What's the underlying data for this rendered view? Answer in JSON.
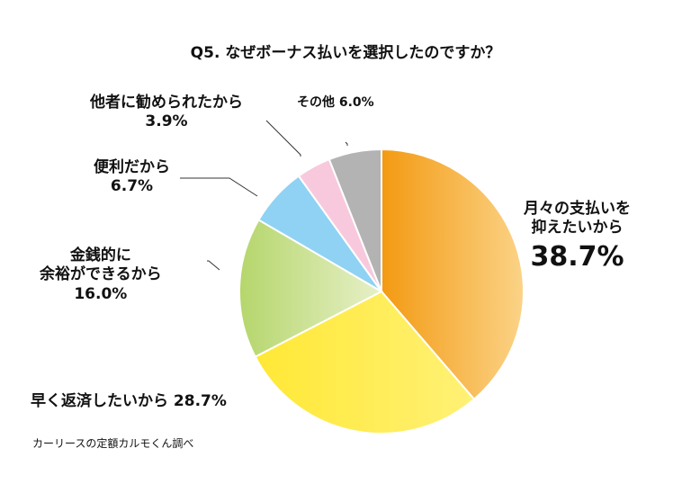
{
  "chart_data": {
    "type": "pie",
    "title": "Q5. なぜボーナス払いを選択したのですか？",
    "slices": [
      {
        "label_lines": [
          "月々の支払いを",
          "抑えたいから"
        ],
        "value_label": "38.7%",
        "value": 38.7,
        "color": "#F39A12",
        "color_end": "#FBD387"
      },
      {
        "label_lines": [
          "早く返済したいから 28.7%"
        ],
        "value_label": "",
        "value": 28.7,
        "color": "#FFE835",
        "color_end": "#FFF176"
      },
      {
        "label_lines": [
          "金銭的に",
          "余裕ができるから"
        ],
        "value_label": "16.0%",
        "value": 16.0,
        "color": "#B5D66C",
        "color_end": "#E7F0C8"
      },
      {
        "label_lines": [
          "便利だから"
        ],
        "value_label": "6.7%",
        "value": 6.7,
        "color": "#8FD2F3",
        "color_end": "#8FD2F3"
      },
      {
        "label_lines": [
          "他者に勧められたから"
        ],
        "value_label": "3.9%",
        "value": 3.9,
        "color": "#F8C9DD",
        "color_end": "#F8C9DD"
      },
      {
        "label_lines": [
          "その他 6.0%"
        ],
        "value_label": "",
        "value": 6.0,
        "color": "#B3B3B3",
        "color_end": "#B3B3B3"
      }
    ],
    "start": "top",
    "direction": "clockwise"
  },
  "source": "カーリースの定額カルモくん調べ"
}
